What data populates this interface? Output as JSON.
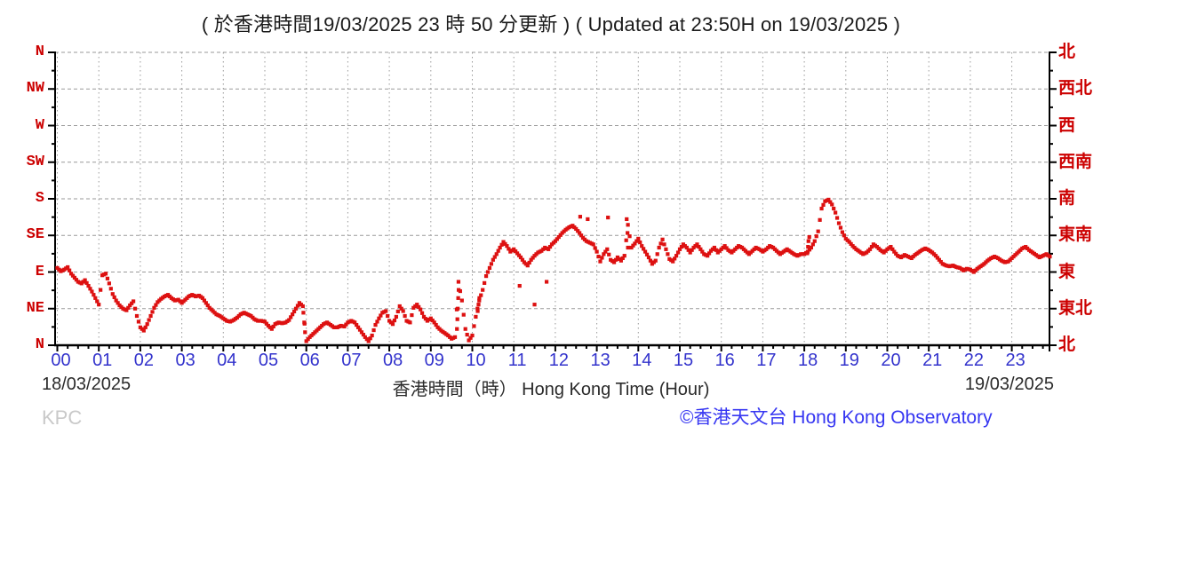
{
  "title": "( 於香港時間19/03/2025 23 時 50 分更新 ) ( Updated at 23:50H on 19/03/2025 )",
  "station": "KPC",
  "footer": {
    "date_left": "18/03/2025",
    "date_right": "19/03/2025",
    "xaxis_label": "香港時間（時） Hong Kong Time (Hour)",
    "copyright": "©香港天文台 Hong Kong Observatory"
  },
  "colors": {
    "point_red": "#dd1111",
    "axis_label_red": "#cc0000",
    "hour_label_blue": "#3333cc",
    "copyright_blue": "#3636f2",
    "grid_gray": "#9a9a9a",
    "axis_black": "#000000",
    "station_gray": "#c9c9c9",
    "text_dark": "#2b2b2b"
  },
  "chart_data": {
    "type": "scatter",
    "title": "( 於香港時間19/03/2025 23 時 50 分更新 ) ( Updated at 23:50H on 19/03/2025 )",
    "xlabel": "香港時間（時） Hong Kong Time (Hour)",
    "ylabel": "",
    "x_tick_labels": [
      "00",
      "01",
      "02",
      "03",
      "04",
      "05",
      "06",
      "07",
      "08",
      "09",
      "10",
      "11",
      "12",
      "13",
      "14",
      "15",
      "16",
      "17",
      "18",
      "19",
      "20",
      "21",
      "22",
      "23"
    ],
    "y_tick_labels_left": [
      "N",
      "NW",
      "W",
      "SW",
      "S",
      "SE",
      "E",
      "NE",
      "N"
    ],
    "y_tick_labels_right": [
      "北",
      "西北",
      "西",
      "西南",
      "南",
      "東南",
      "東",
      "東北",
      "北"
    ],
    "y_axis_degrees": [
      360,
      315,
      270,
      225,
      180,
      135,
      90,
      45,
      0
    ],
    "ylim_degrees": [
      0,
      360
    ],
    "xlim_hours": [
      0,
      24
    ],
    "grid": "on",
    "start_hour": 0,
    "interval_minutes": 5,
    "series": [
      {
        "name": "wind-direction-KPC",
        "values_deg": [
          95,
          91,
          93,
          96,
          88,
          83,
          78,
          76,
          80,
          73,
          66,
          58,
          50,
          86,
          88,
          76,
          63,
          55,
          49,
          45,
          43,
          49,
          54,
          36,
          22,
          18,
          26,
          36,
          46,
          53,
          57,
          60,
          62,
          58,
          55,
          56,
          52,
          56,
          60,
          62,
          60,
          61,
          58,
          52,
          46,
          42,
          38,
          36,
          33,
          30,
          29,
          31,
          34,
          38,
          40,
          38,
          36,
          32,
          30,
          30,
          29,
          24,
          20,
          26,
          28,
          27,
          28,
          31,
          38,
          45,
          52,
          48,
          5,
          10,
          14,
          18,
          22,
          26,
          28,
          25,
          22,
          22,
          24,
          23,
          28,
          30,
          28,
          22,
          16,
          10,
          5,
          12,
          25,
          33,
          40,
          42,
          30,
          26,
          35,
          48,
          42,
          30,
          28,
          46,
          50,
          44,
          35,
          30,
          33,
          28,
          22,
          18,
          15,
          12,
          8,
          10,
          78,
          55,
          20,
          6,
          12,
          35,
          55,
          68,
          85,
          95,
          105,
          112,
          120,
          127,
          122,
          115,
          118,
          113,
          108,
          102,
          98,
          105,
          110,
          114,
          116,
          120,
          118,
          124,
          128,
          133,
          138,
          142,
          145,
          147,
          143,
          138,
          132,
          128,
          126,
          124,
          115,
          103,
          112,
          118,
          105,
          102,
          108,
          104,
          110,
          148,
          120,
          125,
          131,
          122,
          115,
          108,
          100,
          104,
          120,
          130,
          118,
          106,
          103,
          110,
          118,
          124,
          120,
          114,
          120,
          124,
          118,
          112,
          110,
          116,
          120,
          114,
          118,
          122,
          117,
          114,
          118,
          122,
          120,
          116,
          112,
          116,
          120,
          118,
          115,
          118,
          122,
          120,
          116,
          112,
          115,
          118,
          115,
          112,
          110,
          112,
          112,
          115,
          120,
          128,
          140,
          168,
          177,
          179,
          173,
          163,
          150,
          139,
          131,
          127,
          122,
          118,
          115,
          112,
          114,
          118,
          124,
          121,
          117,
          114,
          118,
          121,
          115,
          110,
          108,
          111,
          109,
          107,
          111,
          114,
          117,
          119,
          117,
          114,
          110,
          105,
          100,
          98,
          97,
          98,
          96,
          95,
          92,
          94,
          93,
          90,
          94,
          97,
          100,
          104,
          107,
          109,
          107,
          104,
          102,
          103,
          107,
          111,
          115,
          119,
          121,
          117,
          114,
          111,
          108,
          110,
          112,
          109
        ]
      }
    ],
    "extra_points": [
      [
        5.93,
        40
      ],
      [
        5.95,
        28
      ],
      [
        5.97,
        16
      ],
      [
        9.63,
        20
      ],
      [
        9.64,
        32
      ],
      [
        9.65,
        45
      ],
      [
        9.66,
        58
      ],
      [
        9.67,
        68
      ],
      [
        10.13,
        42
      ],
      [
        10.15,
        50
      ],
      [
        10.17,
        58
      ],
      [
        11.14,
        73
      ],
      [
        11.5,
        50
      ],
      [
        11.79,
        78
      ],
      [
        12.6,
        158
      ],
      [
        12.78,
        155
      ],
      [
        13.27,
        157
      ],
      [
        13.72,
        155
      ],
      [
        13.74,
        138
      ],
      [
        13.75,
        120
      ],
      [
        18.07,
        113
      ],
      [
        18.09,
        121
      ],
      [
        18.1,
        128
      ],
      [
        18.12,
        133
      ]
    ]
  }
}
